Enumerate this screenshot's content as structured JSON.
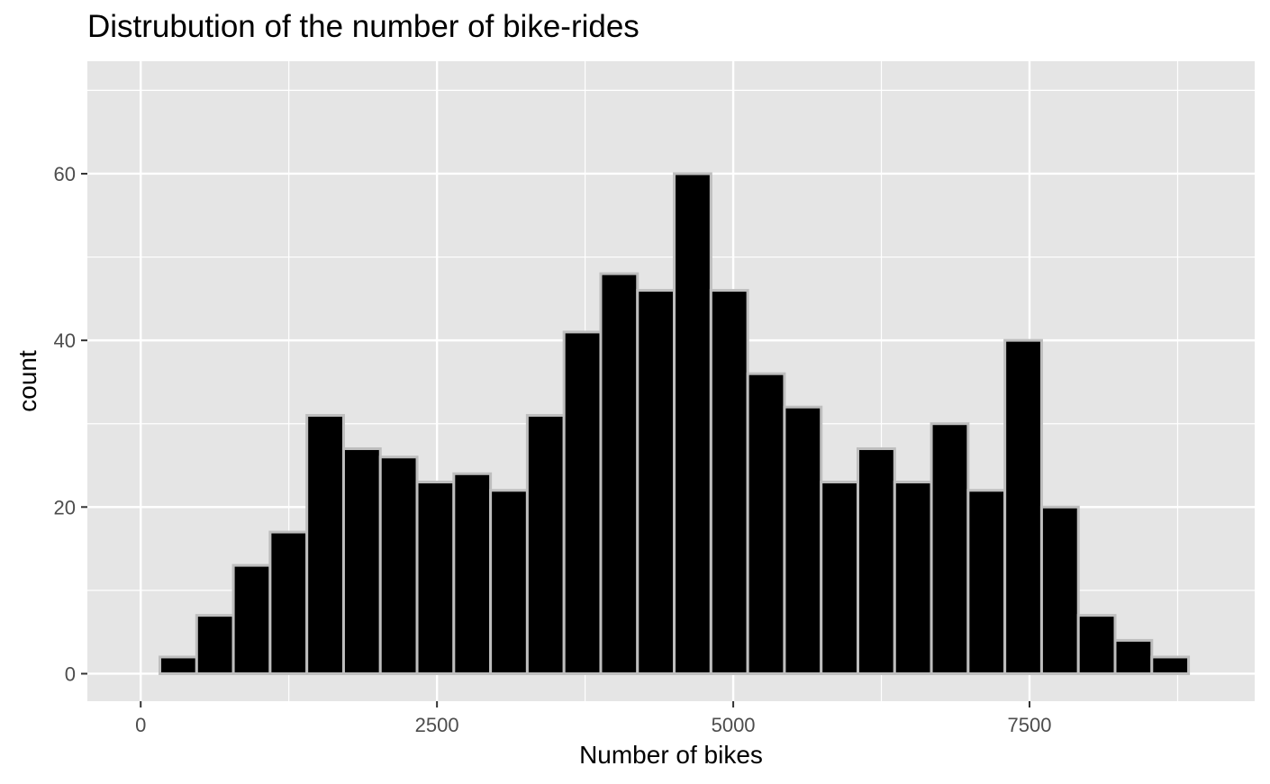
{
  "chart_data": {
    "type": "bar",
    "title": "Distrubution of the number of bike-rides",
    "xlabel": "Number of bikes",
    "ylabel": "count",
    "xlim": [
      -450,
      9400
    ],
    "ylim": [
      -3.3,
      73.5
    ],
    "x_ticks": [
      0,
      2500,
      5000,
      7500
    ],
    "x_tick_labels": [
      "0",
      "2500",
      "5000",
      "7500"
    ],
    "y_ticks": [
      0,
      20,
      40,
      60
    ],
    "y_tick_labels": [
      "0",
      "20",
      "40",
      "60"
    ],
    "x_minor_ticks": [
      1250,
      3750,
      6250,
      8750
    ],
    "y_minor_ticks": [
      10,
      30,
      50,
      70
    ],
    "bin_width": 310,
    "bin_centers": [
      317,
      627,
      937,
      1247,
      1557,
      1867,
      2177,
      2487,
      2797,
      3107,
      3417,
      3727,
      4037,
      4347,
      4657,
      4967,
      5277,
      5587,
      5897,
      6207,
      6517,
      6827,
      7137,
      7447,
      7757,
      8067,
      8377,
      8687
    ],
    "values": [
      2,
      7,
      13,
      17,
      31,
      27,
      26,
      23,
      24,
      22,
      31,
      41,
      48,
      46,
      60,
      46,
      36,
      32,
      23,
      27,
      23,
      30,
      22,
      40,
      20,
      7,
      4,
      2
    ],
    "grid": true,
    "colors": {
      "panel_background": "#e5e5e5",
      "grid_line": "#ffffff",
      "bar_fill": "#000000",
      "bar_outline": "#bebebe",
      "tick_label": "#4d4d4d"
    }
  }
}
